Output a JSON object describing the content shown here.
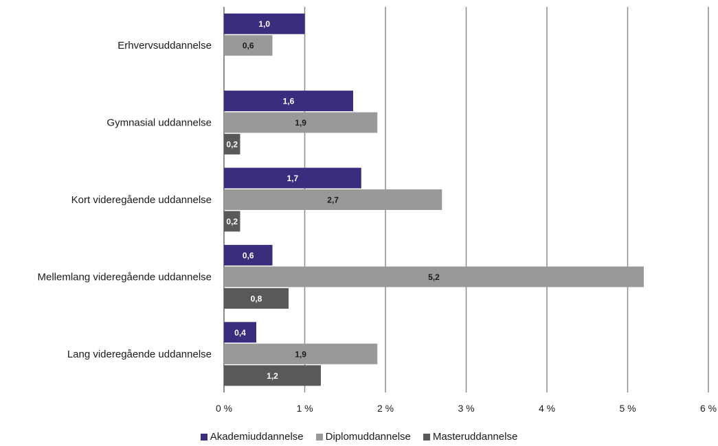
{
  "chart_data": {
    "type": "bar",
    "orientation": "horizontal",
    "categories": [
      "Erhvervsuddannelse",
      "Gymnasial uddannelse",
      "Kort videregående uddannelse",
      "Mellemlang videregående uddannelse",
      "Lang videregående uddannelse"
    ],
    "series": [
      {
        "name": "Akademiuddannelse",
        "color": "#3a2d7d",
        "label_color": "#ffffff",
        "values": [
          1.0,
          1.6,
          1.7,
          0.6,
          0.4
        ],
        "labels": [
          "1,0",
          "1,6",
          "1,7",
          "0,6",
          "0,4"
        ]
      },
      {
        "name": "Diplomuddannelse",
        "color": "#999999",
        "label_color": "#1a1a1a",
        "values": [
          0.6,
          1.9,
          2.7,
          5.2,
          1.9
        ],
        "labels": [
          "0,6",
          "1,9",
          "2,7",
          "5,2",
          "1,9"
        ]
      },
      {
        "name": "Masteruddannelse",
        "color": "#595959",
        "label_color": "#ffffff",
        "values": [
          null,
          0.2,
          0.2,
          0.8,
          1.2
        ],
        "labels": [
          null,
          "0,2",
          "0,2",
          "0,8",
          "1,2"
        ]
      }
    ],
    "x_ticks": [
      0,
      1,
      2,
      3,
      4,
      5,
      6
    ],
    "x_tick_labels": [
      "0 %",
      "1 %",
      "2 %",
      "3 %",
      "4 %",
      "5 %",
      "6 %"
    ],
    "xlim": [
      0,
      6
    ],
    "title": "",
    "xlabel": "",
    "ylabel": "",
    "grid": true,
    "legend_position": "bottom"
  }
}
